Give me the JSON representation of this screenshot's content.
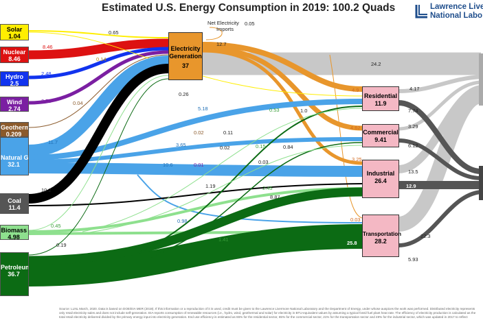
{
  "title": "Estimated U.S. Energy Consumption in 2019: 100.2 Quads",
  "logo": {
    "line1": "Lawrence Live",
    "line2": "National Labo"
  },
  "sources": [
    {
      "name": "Solar",
      "value": "1.04",
      "color": "#ffee00",
      "text": "#000000"
    },
    {
      "name": "Nuclear",
      "value": "8.46",
      "color": "#dd1111",
      "text": "#ffffff"
    },
    {
      "name": "Hydro",
      "value": "2.5",
      "color": "#1133ee",
      "text": "#ffffff"
    },
    {
      "name": "Wind",
      "value": "2.74",
      "color": "#7b1fa2",
      "text": "#ffffff"
    },
    {
      "name": "Geothermal",
      "value": "0.209",
      "color": "#8b5a2b",
      "text": "#ffffff"
    },
    {
      "name": "Natural Gas",
      "value": "32.1",
      "color": "#4aa3e8",
      "text": "#ffffff"
    },
    {
      "name": "Coal",
      "value": "11.4",
      "color": "#555555",
      "text": "#ffffff"
    },
    {
      "name": "Biomass",
      "value": "4.98",
      "color": "#8ee08e",
      "text": "#000000"
    },
    {
      "name": "Petroleum",
      "value": "36.7",
      "color": "#0c6b14",
      "text": "#ffffff"
    }
  ],
  "nodes": {
    "electricity": {
      "name1": "Electricity",
      "name2": "Generation",
      "value": "37"
    },
    "residential": {
      "name": "Residential",
      "value": "11.9"
    },
    "commercial": {
      "name": "Commercial",
      "value": "9.41"
    },
    "industrial": {
      "name": "Industrial",
      "value": "26.4"
    },
    "transportation": {
      "name": "Transportation",
      "value": "28.2"
    }
  },
  "net_imports": {
    "label1": "Net Electricity",
    "label2": "Imports",
    "value": "0.05"
  },
  "flow_labels": [
    "0.65",
    "8.46",
    "2.48",
    "0.14",
    "2.73",
    "0.04",
    "12.7",
    "24.2",
    "0.26",
    "5.18",
    "0.53",
    "1.0",
    "4.9",
    "4.17",
    "7.74",
    "4.62",
    "3.29",
    "0.02",
    "0.11",
    "0.15",
    "0.84",
    "11.7",
    "3.65",
    "0.02",
    "6.12",
    "0.03",
    "10.6",
    "0.01",
    "3.25",
    "10.2",
    "1.19",
    "2.45",
    "13.5",
    "12.9",
    "8.87",
    "0.45",
    "0.98",
    "0.03",
    "22.3",
    "1.41",
    "0.19",
    "25.8",
    "5.93"
  ],
  "footnote": "Source: LLNL March, 2020. Data is based on DOE/EIA MER (2019). If this information or a reproduction of it is used, credit must be given to the Lawrence Livermore National Laboratory and the Department of Energy, under whose auspices the work was performed. Distributed electricity represents only retail electricity sales and does not include self-generation. EIA reports consumption of renewable resources (i.e., hydro, wind, geothermal and solar) for electricity in BTU-equivalent values by assuming a typical fossil fuel plant heat rate. The efficiency of electricity production is calculated as the total retail electricity delivered divided by the primary energy input into electricity generation. End use efficiency is estimated as 65% for the residential sector, 65% for the commercial sector, 21% for the transportation sector and 49% for the industrial sector, which was updated in 2017 to reflect"
}
